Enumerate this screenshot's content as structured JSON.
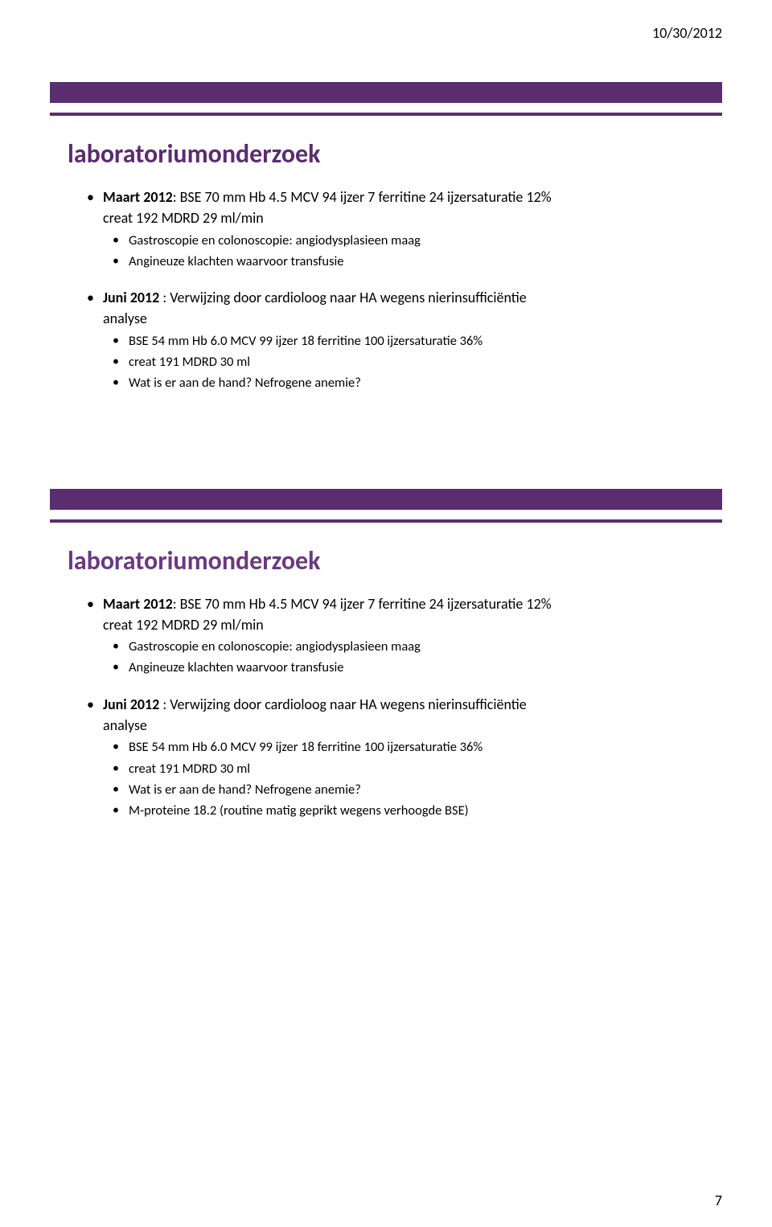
{
  "page": {
    "date": "10/30/2012",
    "number": "7"
  },
  "colors": {
    "purple_bar": "#5a2d6e",
    "title_1": "#5a2d6e",
    "title_2": "#6a3a80",
    "text": "#000000",
    "background": "#ffffff"
  },
  "slide1": {
    "title": "laboratoriumonderzoek",
    "b1_lead": "Maart 2012",
    "b1_rest": ": BSE 70 mm Hb 4.5 MCV 94 ijzer 7 ferritine 24 ijzersaturatie 12%",
    "b1_cont": "creat 192 MDRD 29 ml/min",
    "b1_sub1": "Gastroscopie en colonoscopie: angiodysplasieen maag",
    "b1_sub2": "Angineuze klachten waarvoor transfusie",
    "b2_lead": "Juni 2012",
    "b2_rest": " : Verwijzing door cardioloog naar HA wegens nierinsufficiëntie",
    "b2_cont": "analyse",
    "b2_sub1": "BSE 54 mm Hb 6.0 MCV 99 ijzer 18 ferritine 100 ijzersaturatie 36%",
    "b2_sub2": "creat 191 MDRD 30 ml",
    "b2_sub3": "Wat is er aan de hand? Nefrogene anemie?"
  },
  "slide2": {
    "title": "laboratoriumonderzoek",
    "b1_lead": "Maart 2012",
    "b1_rest": ": BSE 70 mm Hb 4.5 MCV 94 ijzer 7 ferritine 24 ijzersaturatie 12%",
    "b1_cont": "creat 192 MDRD 29 ml/min",
    "b1_sub1": "Gastroscopie en colonoscopie: angiodysplasieen maag",
    "b1_sub2": "Angineuze klachten waarvoor transfusie",
    "b2_lead": "Juni 2012",
    "b2_rest": " : Verwijzing door cardioloog naar HA wegens nierinsufficiëntie",
    "b2_cont": "analyse",
    "b2_sub1": "BSE 54 mm Hb 6.0 MCV 99 ijzer 18 ferritine 100 ijzersaturatie 36%",
    "b2_sub2": "creat 191 MDRD 30 ml",
    "b2_sub3": "Wat is er aan de hand? Nefrogene anemie?",
    "b2_sub4": "M-proteine 18.2 (routine matig geprikt wegens verhoogde BSE)"
  }
}
